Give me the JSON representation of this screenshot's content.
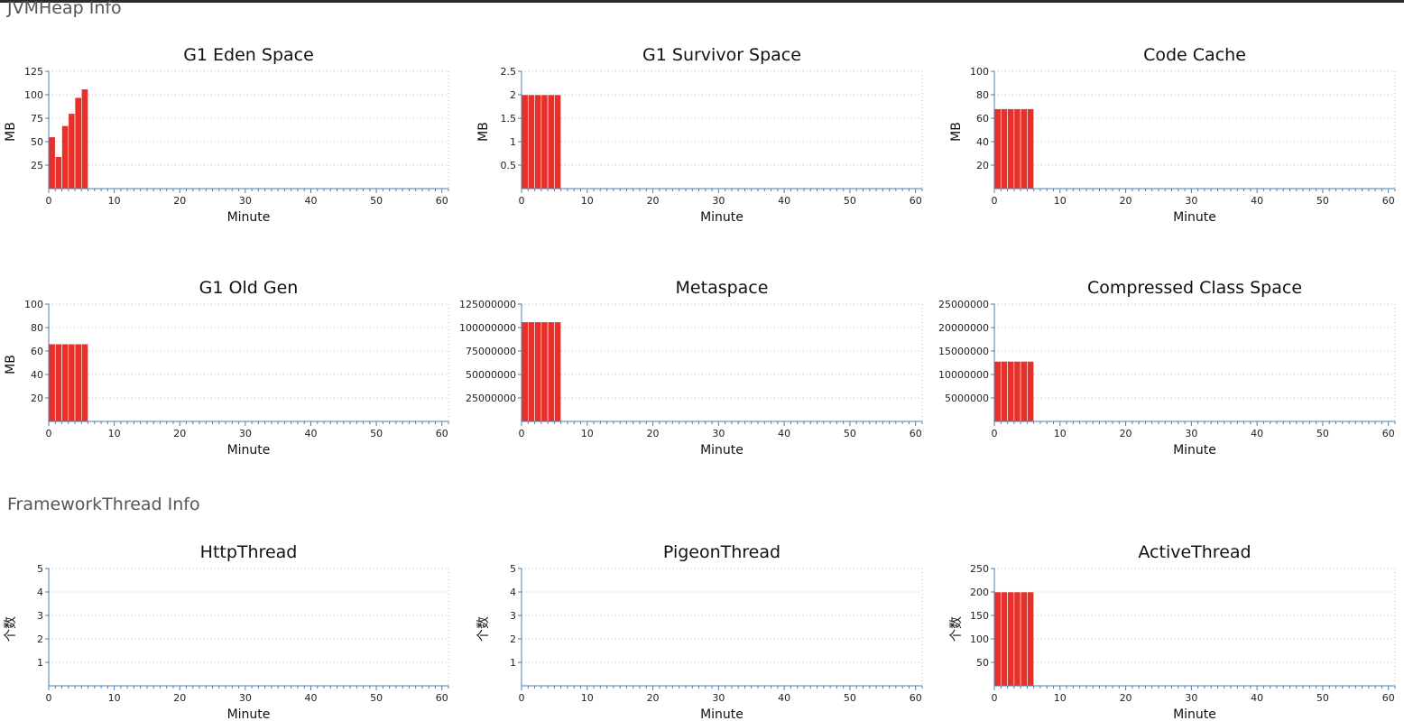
{
  "sections": {
    "jvm_heap": "JVMHeap Info",
    "framework_thread": "FrameworkThread Info"
  },
  "colors": {
    "bar": "#e8302a",
    "axis": "#4a7fb0",
    "grid": "#b8b8b8"
  },
  "chart_data": [
    {
      "type": "bar",
      "title": "G1 Eden Space",
      "xlabel": "Minute",
      "ylabel": "MB",
      "x": [
        0,
        1,
        2,
        3,
        4,
        5
      ],
      "values": [
        55,
        34,
        67,
        80,
        97,
        106
      ],
      "xlim": [
        0,
        61
      ],
      "xticks": [
        0,
        10,
        20,
        30,
        40,
        50,
        60
      ],
      "ylim": [
        0,
        125
      ],
      "yticks": [
        25,
        50,
        75,
        100,
        125
      ],
      "grid": true
    },
    {
      "type": "bar",
      "title": "G1 Survivor Space",
      "xlabel": "Minute",
      "ylabel": "MB",
      "x": [
        0,
        1,
        2,
        3,
        4,
        5
      ],
      "values": [
        2,
        2,
        2,
        2,
        2,
        2
      ],
      "xlim": [
        0,
        61
      ],
      "xticks": [
        0,
        10,
        20,
        30,
        40,
        50,
        60
      ],
      "ylim": [
        0,
        2.5
      ],
      "yticks": [
        0.5,
        1,
        1.5,
        2,
        2.5
      ],
      "grid": true
    },
    {
      "type": "bar",
      "title": "Code Cache",
      "xlabel": "Minute",
      "ylabel": "MB",
      "x": [
        0,
        1,
        2,
        3,
        4,
        5
      ],
      "values": [
        68,
        68,
        68,
        68,
        68,
        68
      ],
      "xlim": [
        0,
        61
      ],
      "xticks": [
        0,
        10,
        20,
        30,
        40,
        50,
        60
      ],
      "ylim": [
        0,
        100
      ],
      "yticks": [
        20,
        40,
        60,
        80,
        100
      ],
      "grid": true
    },
    {
      "type": "bar",
      "title": "G1 Old Gen",
      "xlabel": "Minute",
      "ylabel": "MB",
      "x": [
        0,
        1,
        2,
        3,
        4,
        5
      ],
      "values": [
        66,
        66,
        66,
        66,
        66,
        66
      ],
      "xlim": [
        0,
        61
      ],
      "xticks": [
        0,
        10,
        20,
        30,
        40,
        50,
        60
      ],
      "ylim": [
        0,
        100
      ],
      "yticks": [
        20,
        40,
        60,
        80,
        100
      ],
      "grid": true
    },
    {
      "type": "bar",
      "title": "Metaspace",
      "xlabel": "Minute",
      "ylabel": "",
      "x": [
        0,
        1,
        2,
        3,
        4,
        5
      ],
      "values": [
        106000000,
        106000000,
        106000000,
        106000000,
        106000000,
        106000000
      ],
      "xlim": [
        0,
        61
      ],
      "xticks": [
        0,
        10,
        20,
        30,
        40,
        50,
        60
      ],
      "ylim": [
        0,
        125000000
      ],
      "yticks": [
        25000000,
        50000000,
        75000000,
        100000000,
        125000000
      ],
      "grid": true
    },
    {
      "type": "bar",
      "title": "Compressed Class Space",
      "xlabel": "Minute",
      "ylabel": "",
      "x": [
        0,
        1,
        2,
        3,
        4,
        5
      ],
      "values": [
        12800000,
        12800000,
        12800000,
        12800000,
        12800000,
        12800000
      ],
      "xlim": [
        0,
        61
      ],
      "xticks": [
        0,
        10,
        20,
        30,
        40,
        50,
        60
      ],
      "ylim": [
        0,
        25000000
      ],
      "yticks": [
        5000000,
        10000000,
        15000000,
        20000000,
        25000000
      ],
      "grid": true
    },
    {
      "type": "bar",
      "title": "HttpThread",
      "xlabel": "Minute",
      "ylabel": "个数",
      "x": [],
      "values": [],
      "xlim": [
        0,
        61
      ],
      "xticks": [
        0,
        10,
        20,
        30,
        40,
        50,
        60
      ],
      "ylim": [
        0,
        5
      ],
      "yticks": [
        1,
        2,
        3,
        4,
        5
      ],
      "grid": true
    },
    {
      "type": "bar",
      "title": "PigeonThread",
      "xlabel": "Minute",
      "ylabel": "个数",
      "x": [],
      "values": [],
      "xlim": [
        0,
        61
      ],
      "xticks": [
        0,
        10,
        20,
        30,
        40,
        50,
        60
      ],
      "ylim": [
        0,
        5
      ],
      "yticks": [
        1,
        2,
        3,
        4,
        5
      ],
      "grid": true
    },
    {
      "type": "bar",
      "title": "ActiveThread",
      "xlabel": "Minute",
      "ylabel": "个数",
      "x": [
        0,
        1,
        2,
        3,
        4,
        5
      ],
      "values": [
        200,
        200,
        200,
        200,
        200,
        200
      ],
      "xlim": [
        0,
        61
      ],
      "xticks": [
        0,
        10,
        20,
        30,
        40,
        50,
        60
      ],
      "ylim": [
        0,
        250
      ],
      "yticks": [
        50,
        100,
        150,
        200,
        250
      ],
      "grid": true
    }
  ]
}
